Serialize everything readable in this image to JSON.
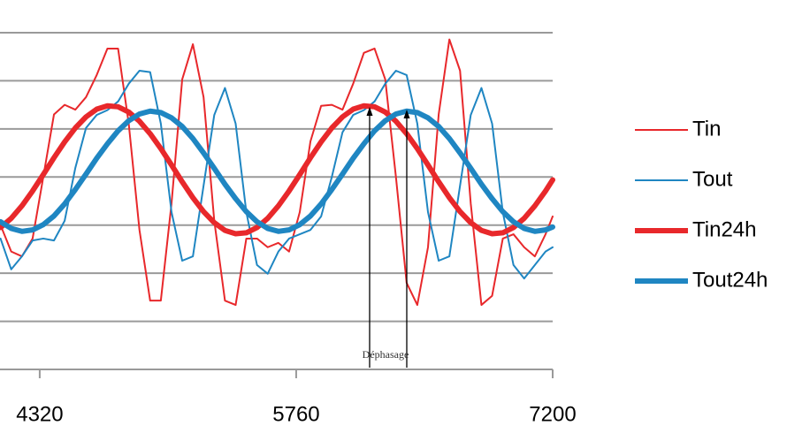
{
  "chart_data": {
    "type": "line",
    "x": [
      4100,
      4160,
      4220,
      4280,
      4340,
      4400,
      4460,
      4520,
      4580,
      4640,
      4700,
      4760,
      4820,
      4880,
      4940,
      5000,
      5060,
      5120,
      5180,
      5240,
      5300,
      5360,
      5420,
      5480,
      5540,
      5600,
      5660,
      5720,
      5780,
      5840,
      5900,
      5960,
      6020,
      6080,
      6140,
      6200,
      6260,
      6320,
      6380,
      6440,
      6500,
      6560,
      6620,
      6680,
      6740,
      6800,
      6860,
      6920,
      6980,
      7040,
      7100,
      7160,
      7200
    ],
    "series": [
      {
        "name": "Tin",
        "color": "#e8282b",
        "line_width": 2,
        "values": [
          3.0,
          2.45,
          2.35,
          2.72,
          4.0,
          5.3,
          5.5,
          5.4,
          5.66,
          6.12,
          6.67,
          6.67,
          5.1,
          2.9,
          1.43,
          1.43,
          3.45,
          6.03,
          6.76,
          5.66,
          3.09,
          1.43,
          1.34,
          2.72,
          2.72,
          2.54,
          2.63,
          2.45,
          3.27,
          4.74,
          5.48,
          5.5,
          5.4,
          5.94,
          6.58,
          6.67,
          6.03,
          4.0,
          1.8,
          1.34,
          2.54,
          5.3,
          6.86,
          6.21,
          3.45,
          1.34,
          1.53,
          2.72,
          2.81,
          2.54,
          2.35,
          2.81,
          3.18
        ]
      },
      {
        "name": "Tout",
        "color": "#1f86c2",
        "line_width": 2,
        "values": [
          2.72,
          2.08,
          2.35,
          2.68,
          2.72,
          2.68,
          3.09,
          4.19,
          5.02,
          5.29,
          5.39,
          5.57,
          5.94,
          6.21,
          6.18,
          5.11,
          3.27,
          2.26,
          2.35,
          3.82,
          5.29,
          5.85,
          5.11,
          3.27,
          2.17,
          1.99,
          2.45,
          2.72,
          2.81,
          2.9,
          3.18,
          4.0,
          4.93,
          5.29,
          5.39,
          5.57,
          5.94,
          6.21,
          6.12,
          5.11,
          3.27,
          2.26,
          2.35,
          3.82,
          5.29,
          5.85,
          5.11,
          3.27,
          2.17,
          1.89,
          2.17,
          2.45,
          2.54
        ]
      },
      {
        "name": "Tin24h",
        "color": "#e8282b",
        "line_width": 6,
        "values": [
          2.95,
          3.14,
          3.4,
          3.71,
          4.05,
          4.4,
          4.73,
          5.02,
          5.25,
          5.41,
          5.48,
          5.46,
          5.35,
          5.16,
          4.9,
          4.59,
          4.25,
          3.9,
          3.57,
          3.28,
          3.05,
          2.89,
          2.82,
          2.84,
          2.95,
          3.14,
          3.4,
          3.71,
          4.05,
          4.4,
          4.73,
          5.02,
          5.25,
          5.41,
          5.48,
          5.46,
          5.35,
          5.16,
          4.9,
          4.59,
          4.25,
          3.9,
          3.57,
          3.28,
          3.05,
          2.89,
          2.82,
          2.84,
          2.95,
          3.14,
          3.4,
          3.71,
          3.94
        ]
      },
      {
        "name": "Tout24h",
        "color": "#1f86c2",
        "line_width": 6,
        "values": [
          3.07,
          2.93,
          2.87,
          2.9,
          3.01,
          3.19,
          3.44,
          3.74,
          4.06,
          4.39,
          4.69,
          4.96,
          5.17,
          5.31,
          5.37,
          5.34,
          5.23,
          5.05,
          4.8,
          4.5,
          4.18,
          3.85,
          3.55,
          3.28,
          3.07,
          2.93,
          2.87,
          2.9,
          3.01,
          3.19,
          3.44,
          3.74,
          4.06,
          4.39,
          4.69,
          4.96,
          5.17,
          5.31,
          5.37,
          5.34,
          5.23,
          5.05,
          4.8,
          4.5,
          4.18,
          3.85,
          3.55,
          3.28,
          3.07,
          2.93,
          2.87,
          2.9,
          2.96
        ]
      }
    ],
    "xlim": [
      4097,
      7200
    ],
    "xticks": [
      4320,
      5760,
      7200
    ],
    "ylim": [
      0,
      7
    ],
    "yticks": [
      0,
      1,
      2,
      3,
      4,
      5,
      6,
      7
    ],
    "ytick_labels": false,
    "grid": true,
    "legend": "right",
    "annotation": "Déphasage"
  }
}
